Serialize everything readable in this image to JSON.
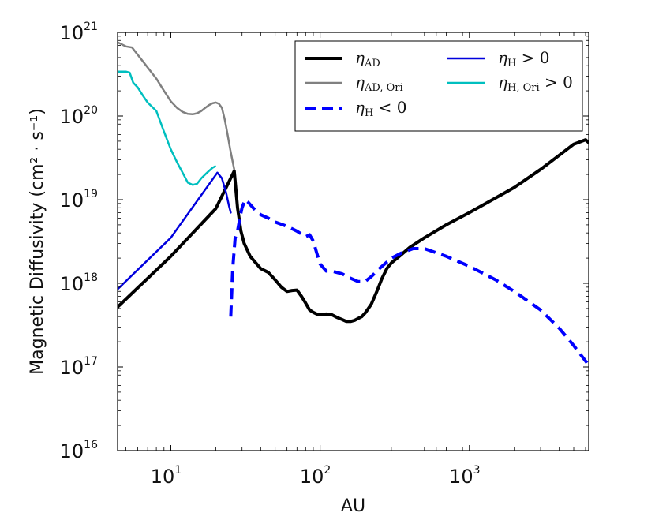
{
  "chart_data": {
    "type": "line",
    "xscale": "log",
    "yscale": "log",
    "xlabel": "AU",
    "ylabel": "Magnetic Diffusivity (cm² · s⁻¹)",
    "xlim": [
      4.4,
      6300
    ],
    "ylim": [
      1e+16,
      1e+21
    ],
    "x_ticks": [
      {
        "base": "10",
        "exp": "1",
        "value": 10
      },
      {
        "base": "10",
        "exp": "2",
        "value": 100
      },
      {
        "base": "10",
        "exp": "3",
        "value": 1000
      }
    ],
    "y_ticks": [
      {
        "base": "10",
        "exp": "16",
        "value": 1e+16
      },
      {
        "base": "10",
        "exp": "17",
        "value": 1e+17
      },
      {
        "base": "10",
        "exp": "18",
        "value": 1e+18
      },
      {
        "base": "10",
        "exp": "19",
        "value": 1e+19
      },
      {
        "base": "10",
        "exp": "20",
        "value": 1e+20
      },
      {
        "base": "10",
        "exp": "21",
        "value": 1e+21
      }
    ],
    "legend_position": "top-right",
    "series": [
      {
        "name": "eta_AD",
        "label_main": "η",
        "label_sub": "AD",
        "label_suffix": "",
        "color": "#000000",
        "style": "solid",
        "width": 4,
        "x": [
          4.4,
          10,
          20,
          26.6,
          28,
          29.5,
          31,
          34,
          40,
          45,
          50,
          55,
          60,
          65,
          70,
          75,
          80,
          85,
          90,
          95,
          100,
          110,
          120,
          130,
          140,
          150,
          160,
          170,
          180,
          190,
          200,
          220,
          240,
          260,
          280,
          300,
          350,
          400,
          500,
          700,
          1000,
          1500,
          2000,
          3000,
          4000,
          5000,
          6000,
          6300
        ],
        "y": [
          5.2e+17,
          2.1e+18,
          7.8e+18,
          2.2e+19,
          8e+18,
          4.2e+18,
          3e+18,
          2.1e+18,
          1.5e+18,
          1.35e+18,
          1.1e+18,
          9e+17,
          8e+17,
          8.2e+17,
          8.3e+17,
          7e+17,
          5.8e+17,
          4.8e+17,
          4.5e+17,
          4.3e+17,
          4.2e+17,
          4.3e+17,
          4.2e+17,
          3.9e+17,
          3.7e+17,
          3.5e+17,
          3.5e+17,
          3.6e+17,
          3.8e+17,
          4e+17,
          4.4e+17,
          5.6e+17,
          8e+17,
          1.15e+18,
          1.5e+18,
          1.75e+18,
          2.2e+18,
          2.7e+18,
          3.5e+18,
          5e+18,
          7e+18,
          1.05e+19,
          1.4e+19,
          2.3e+19,
          3.4e+19,
          4.6e+19,
          5.2e+19,
          4.8e+19
        ]
      },
      {
        "name": "eta_AD_Ori",
        "label_main": "η",
        "label_sub": "AD, Ori",
        "label_suffix": "",
        "color": "#808080",
        "style": "solid",
        "width": 2.5,
        "x": [
          4.4,
          5.0,
          5.5,
          6.0,
          6.5,
          7.0,
          8.0,
          9.0,
          10.0,
          11.0,
          12.0,
          13.0,
          14.0,
          15.0,
          16.0,
          17.0,
          18.0,
          19.0,
          20.0,
          21.0,
          22.0,
          23.0,
          24.0,
          25.0,
          26.6
        ],
        "y": [
          7.6e+20,
          6.8e+20,
          6.6e+20,
          5.4e+20,
          4.5e+20,
          3.8e+20,
          2.8e+20,
          2e+20,
          1.5e+20,
          1.25e+20,
          1.12e+20,
          1.06e+20,
          1.05e+20,
          1.08e+20,
          1.15e+20,
          1.25e+20,
          1.35e+20,
          1.42e+20,
          1.45e+20,
          1.4e+20,
          1.25e+20,
          9e+19,
          6e+19,
          4e+19,
          2.3e+19
        ]
      },
      {
        "name": "eta_H_neg",
        "label_main": "η",
        "label_sub": "H",
        "label_suffix": " < 0",
        "color": "#0000ff",
        "style": "dashed",
        "width": 4,
        "x": [
          25.2,
          26.0,
          27.0,
          28.0,
          29.0,
          30.0,
          31.5,
          33.0,
          36.0,
          40.0,
          45.0,
          50.0,
          60.0,
          70.0,
          80.0,
          85.0,
          90.0,
          95.0,
          100.0,
          110.0,
          120.0,
          140.0,
          160.0,
          180.0,
          200.0,
          220.0,
          250.0,
          300.0,
          350.0,
          420.0,
          500.0,
          700.0,
          1000.0,
          1500.0,
          2000.0,
          3000.0,
          4000.0,
          5000.0,
          6300.0
        ],
        "y": [
          4e+17,
          1.5e+18,
          3.5e+18,
          4.2e+18,
          6e+18,
          8e+18,
          1e+19,
          9.3e+18,
          7.8e+18,
          6.6e+18,
          6e+18,
          5.4e+18,
          4.8e+18,
          4.2e+18,
          3.6e+18,
          3.8e+18,
          3.2e+18,
          2.3e+18,
          1.7e+18,
          1.4e+18,
          1.4e+18,
          1.3e+18,
          1.15e+18,
          1.05e+18,
          1.05e+18,
          1.2e+18,
          1.5e+18,
          2e+18,
          2.3e+18,
          2.6e+18,
          2.6e+18,
          2.1e+18,
          1.6e+18,
          1.1e+18,
          8e+17,
          4.8e+17,
          2.9e+17,
          1.8e+17,
          1.05e+17
        ]
      },
      {
        "name": "eta_H_pos",
        "label_main": "η",
        "label_sub": "H",
        "label_suffix": " > 0",
        "color": "#0000dd",
        "style": "solid",
        "width": 2.5,
        "x": [
          4.4,
          10,
          20.5,
          22,
          23.5,
          24.5,
          25.2
        ],
        "y": [
          8.5e+17,
          3.5e+18,
          2.1e+19,
          1.8e+19,
          1.2e+19,
          8.5e+18,
          7e+18
        ]
      },
      {
        "name": "eta_H_Ori_pos",
        "label_main": "η",
        "label_sub": "H, Ori",
        "label_suffix": " > 0",
        "color": "#00bfbf",
        "style": "solid",
        "width": 2.5,
        "x": [
          4.4,
          5.0,
          5.3,
          5.6,
          6.0,
          6.5,
          7.0,
          8.0,
          9.0,
          10.0,
          11.0,
          12.0,
          13.0,
          14.0,
          15.0,
          16.0,
          17.0,
          18.0,
          19.0,
          19.8
        ],
        "y": [
          3.4e+20,
          3.4e+20,
          3.3e+20,
          2.5e+20,
          2.2e+20,
          1.75e+20,
          1.45e+20,
          1.15e+20,
          6.5e+19,
          4e+19,
          2.8e+19,
          2.1e+19,
          1.6e+19,
          1.5e+19,
          1.55e+19,
          1.8e+19,
          2e+19,
          2.2e+19,
          2.4e+19,
          2.5e+19
        ]
      }
    ]
  }
}
